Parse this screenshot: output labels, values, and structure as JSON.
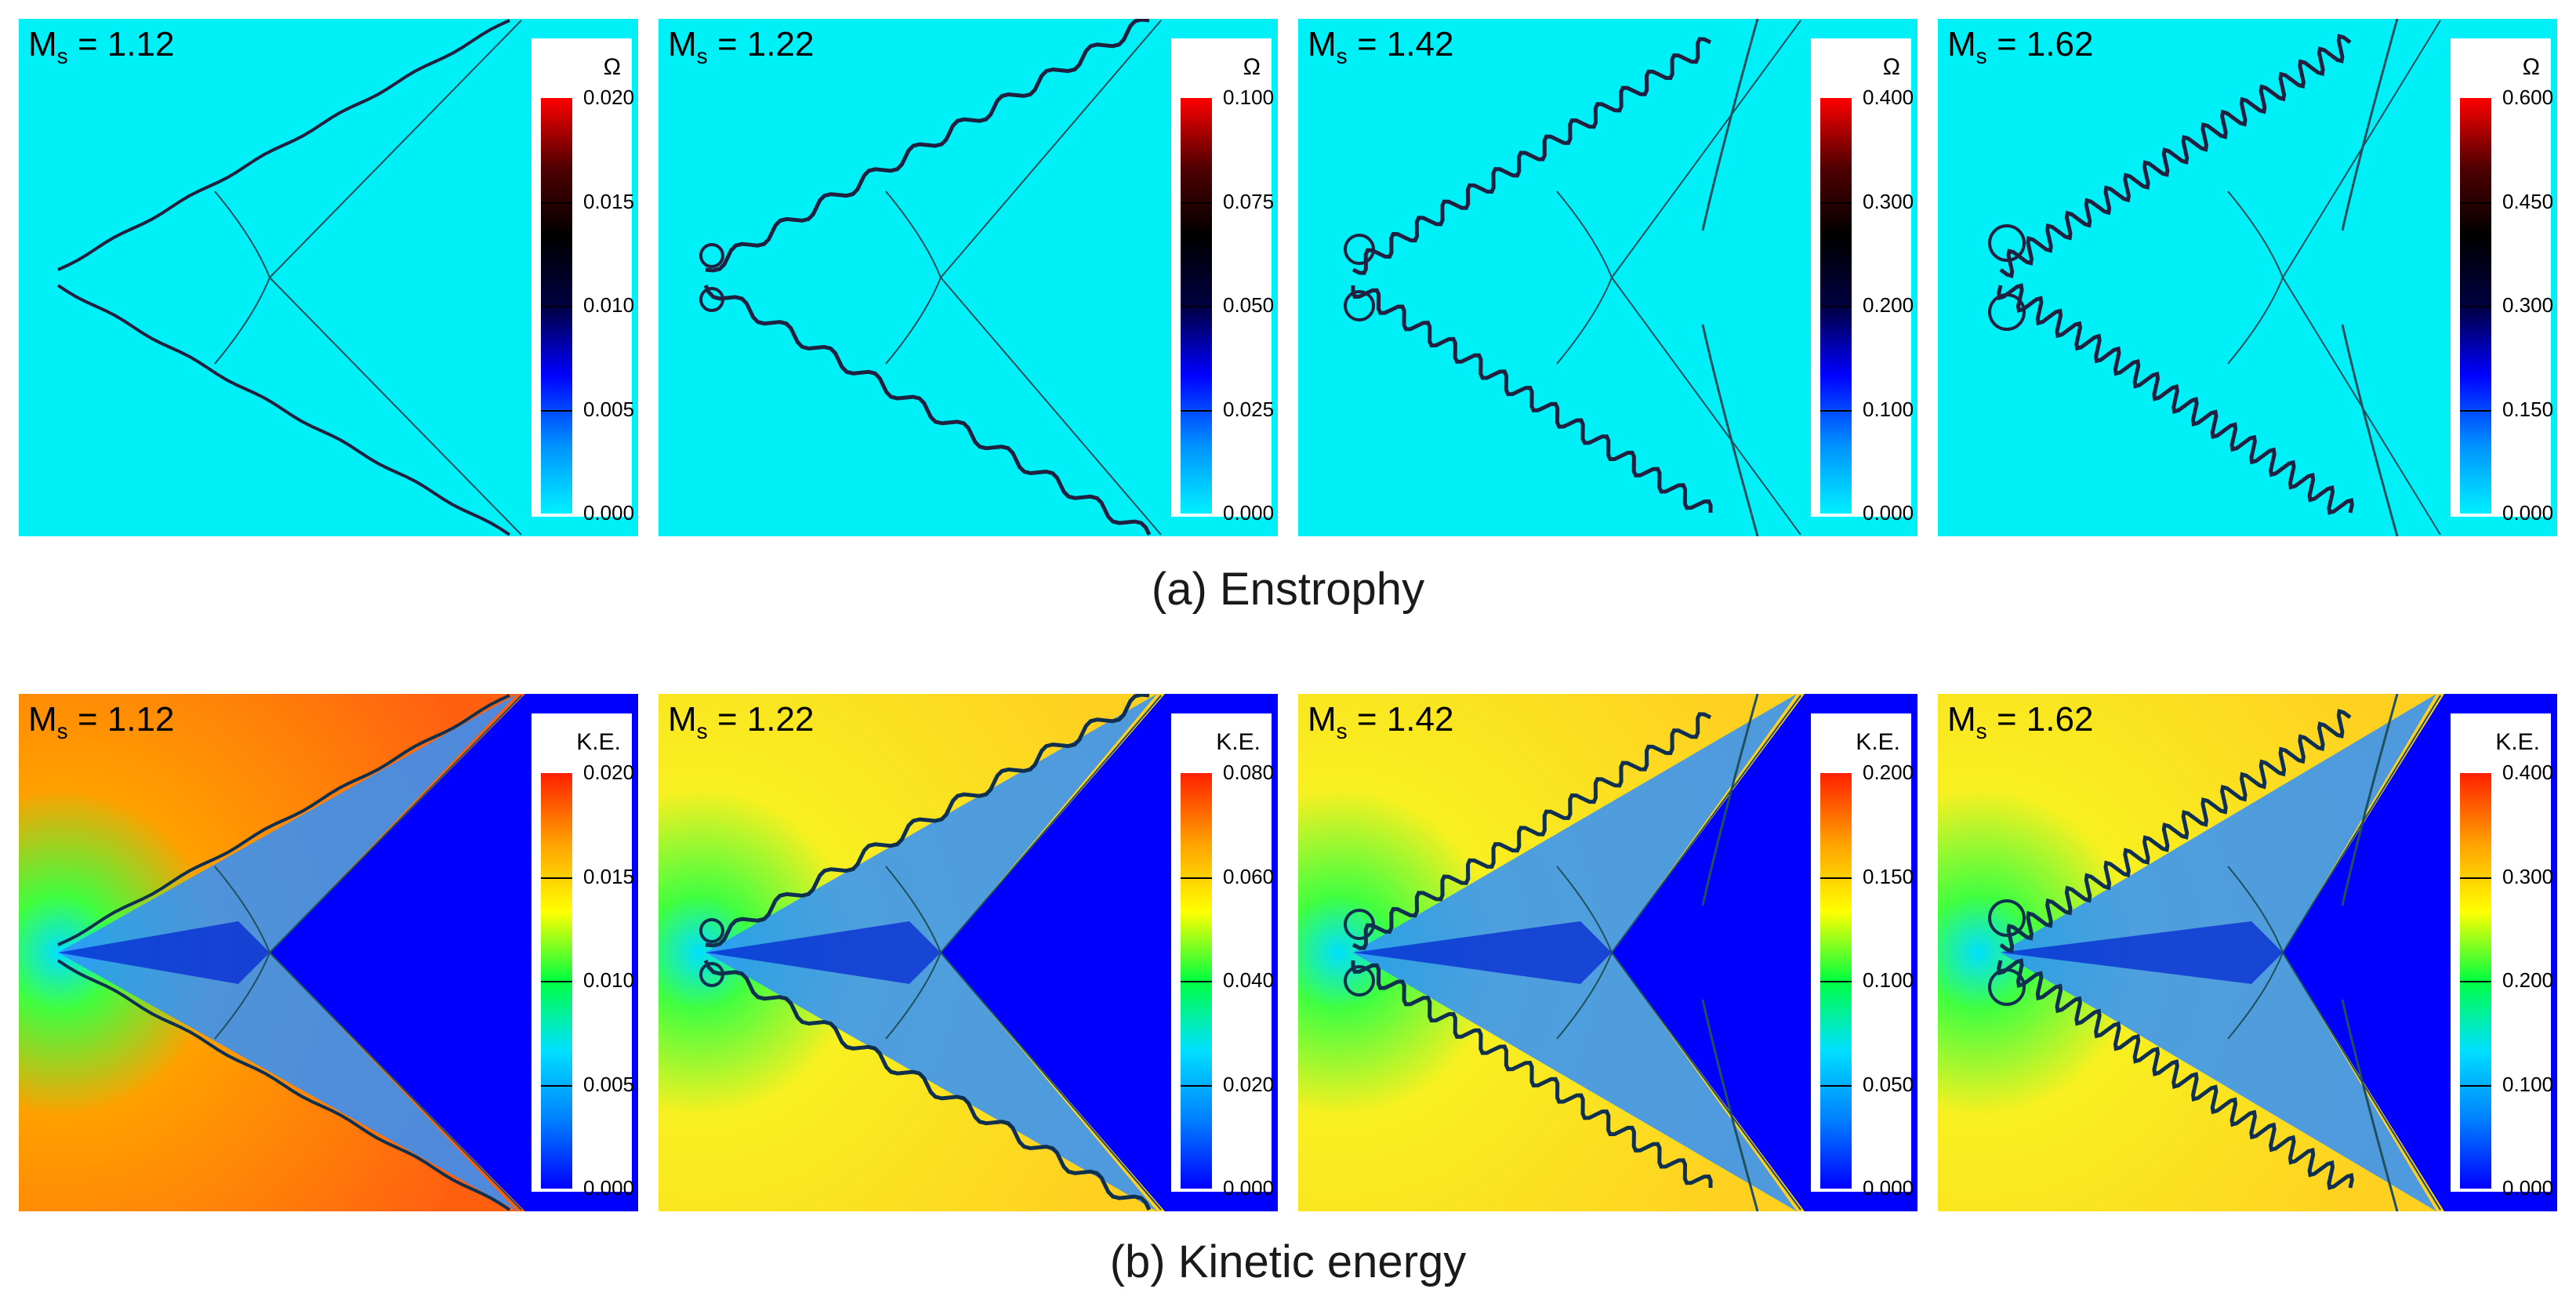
{
  "figure": {
    "rows": [
      {
        "caption": "(a) Enstrophy",
        "legend_title": "Ω",
        "field_color": "#00f0f8",
        "border_color": "#00f0f8",
        "panels": [
          {
            "ms_prefix": "M",
            "ms_sub": "s",
            "ms_value": " = 1.12",
            "ticks": [
              "0.020",
              "0.015",
              "0.010",
              "0.005",
              "0.000"
            ]
          },
          {
            "ms_prefix": "M",
            "ms_sub": "s",
            "ms_value": " = 1.22",
            "ticks": [
              "0.100",
              "0.075",
              "0.050",
              "0.025",
              "0.000"
            ]
          },
          {
            "ms_prefix": "M",
            "ms_sub": "s",
            "ms_value": " = 1.42",
            "ticks": [
              "0.400",
              "0.300",
              "0.200",
              "0.100",
              "0.000"
            ]
          },
          {
            "ms_prefix": "M",
            "ms_sub": "s",
            "ms_value": " = 1.62",
            "ticks": [
              "0.600",
              "0.450",
              "0.300",
              "0.150",
              "0.000"
            ]
          }
        ]
      },
      {
        "caption": "(b) Kinetic energy",
        "legend_title": "K.E.",
        "field_color": "#f0e020",
        "border_color": "#0000ff",
        "panels": [
          {
            "ms_prefix": "M",
            "ms_sub": "s",
            "ms_value": " = 1.12",
            "ticks": [
              "0.020",
              "0.015",
              "0.010",
              "0.005",
              "0.000"
            ]
          },
          {
            "ms_prefix": "M",
            "ms_sub": "s",
            "ms_value": " = 1.22",
            "ticks": [
              "0.080",
              "0.060",
              "0.040",
              "0.020",
              "0.000"
            ]
          },
          {
            "ms_prefix": "M",
            "ms_sub": "s",
            "ms_value": " = 1.42",
            "ticks": [
              "0.200",
              "0.150",
              "0.100",
              "0.050",
              "0.000"
            ]
          },
          {
            "ms_prefix": "M",
            "ms_sub": "s",
            "ms_value": " = 1.62",
            "ticks": [
              "0.400",
              "0.300",
              "0.200",
              "0.100",
              "0.000"
            ]
          }
        ]
      }
    ]
  }
}
